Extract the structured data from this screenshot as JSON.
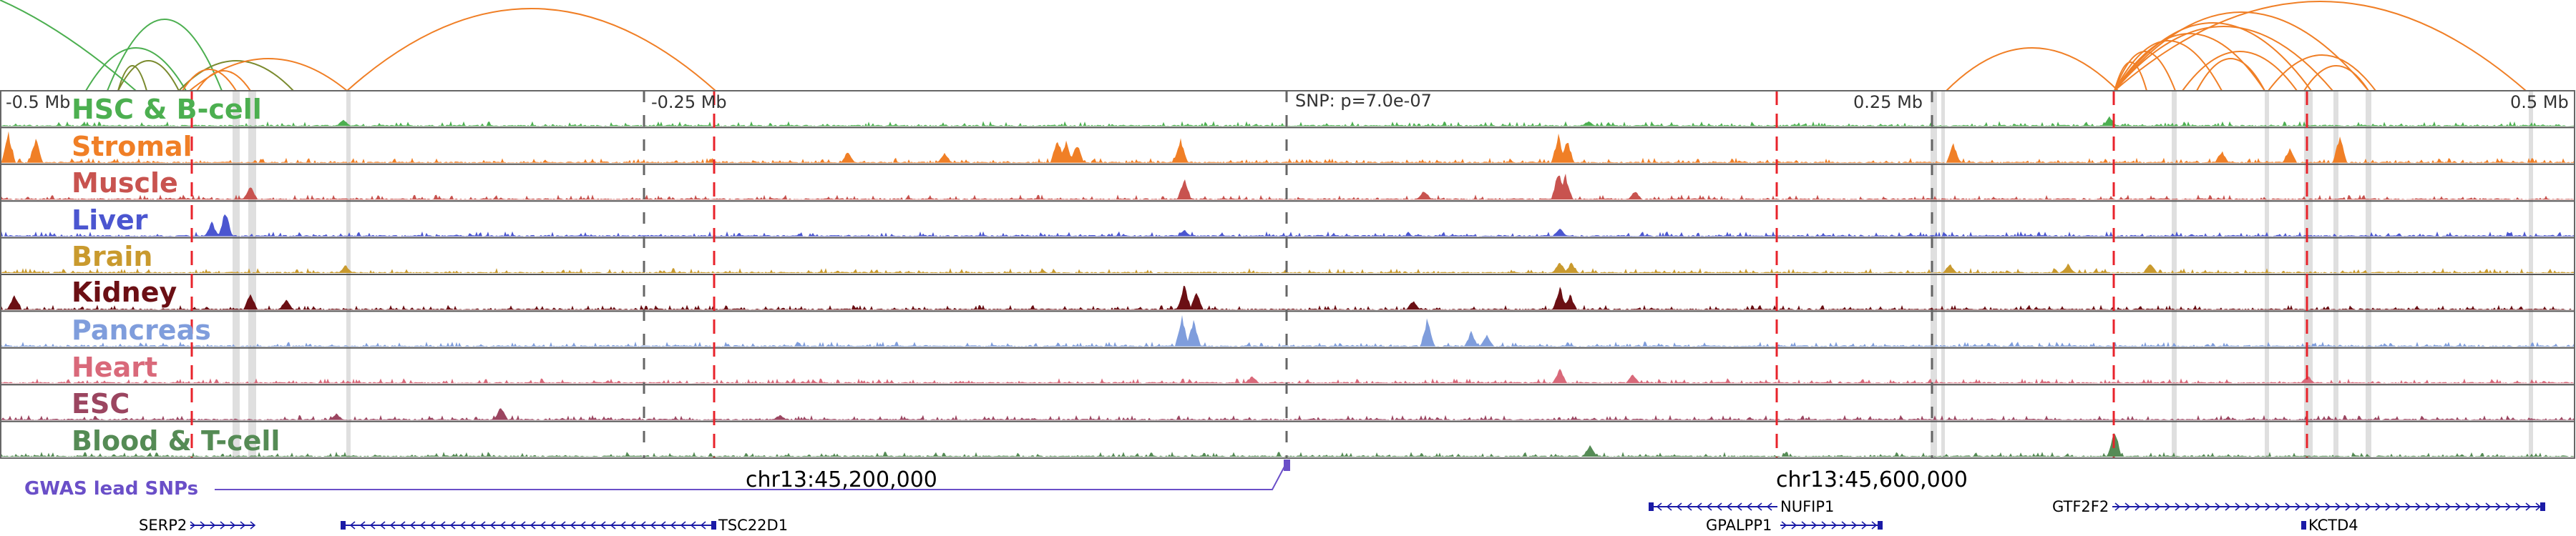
{
  "colors": {
    "loop": "#f07f26",
    "loop_alt": "#7a8a2e",
    "loop_green": "#4caf50",
    "highlight_line": "#e8232b",
    "gray_band": "#d9d9d9",
    "gwas": "#6a4fc8",
    "gene": "#1a1aa6",
    "axis": "#666666"
  },
  "scale": {
    "ticks": [
      "-0.5 Mb",
      "-0.25 Mb",
      "0.25 Mb",
      "0.5 Mb"
    ],
    "snp_label": "SNP: p=7.0e-07"
  },
  "tracks": [
    {
      "name": "HSC & B-cell",
      "color": "#4caf50"
    },
    {
      "name": "Stromal",
      "color": "#f07f26"
    },
    {
      "name": "Muscle",
      "color": "#c8534f"
    },
    {
      "name": "Liver",
      "color": "#4b56d0"
    },
    {
      "name": "Brain",
      "color": "#c99a2e"
    },
    {
      "name": "Kidney",
      "color": "#6b0f14"
    },
    {
      "name": "Pancreas",
      "color": "#7f9ddc"
    },
    {
      "name": "Heart",
      "color": "#d9697a"
    },
    {
      "name": "ESC",
      "color": "#9b4560"
    },
    {
      "name": "Blood & T-cell",
      "color": "#558b55"
    }
  ],
  "gwas": {
    "label": "GWAS lead SNPs"
  },
  "coordinates": [
    "chr13:45,200,000",
    "chr13:45,600,000"
  ],
  "genes": [
    {
      "name": "SERP2",
      "strand": "+"
    },
    {
      "name": "TSC22D1",
      "strand": "-"
    },
    {
      "name": "NUFIP1",
      "strand": "-"
    },
    {
      "name": "GPALPP1",
      "strand": "+"
    },
    {
      "name": "GTF2F2",
      "strand": "+"
    },
    {
      "name": "KCTD4",
      "strand": "-"
    }
  ]
}
